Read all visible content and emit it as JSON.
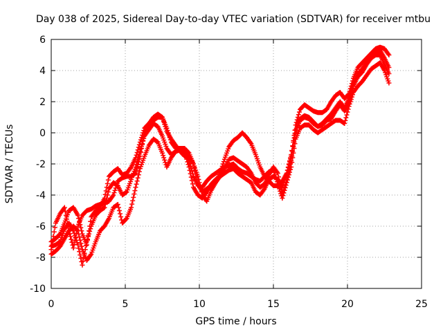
{
  "chart_data": {
    "type": "scatter",
    "title": "Day 038 of 2025, Sidereal Day-to-day VTEC variation (SDTVAR) for receiver mtbu",
    "xlabel": "GPS time / hours",
    "ylabel": "SDTVAR / TECUs",
    "xlim": [
      0,
      25
    ],
    "ylim": [
      -10,
      6
    ],
    "xticks": [
      "0",
      "5",
      "10",
      "15",
      "20",
      "25"
    ],
    "yticks": [
      "-10",
      "-8",
      "-6",
      "-4",
      "-2",
      "0",
      "2",
      "4",
      "6"
    ],
    "grid": true,
    "marker": "+",
    "color": "#ff0000",
    "series": [
      {
        "x": [
          0.0,
          0.3,
          0.6,
          0.9,
          1.2,
          1.5,
          1.8,
          2.1,
          2.4,
          2.7,
          3.0,
          3.3,
          3.6,
          3.9,
          4.2,
          4.5,
          4.8,
          5.1,
          5.4,
          5.7,
          6.0,
          6.3,
          6.6,
          6.9,
          7.2,
          7.5,
          7.8,
          8.1,
          8.4,
          8.7,
          9.0,
          9.3,
          9.6,
          9.9,
          10.2,
          10.5,
          10.8,
          11.1,
          11.4,
          11.7,
          12.0,
          12.3,
          12.6,
          12.9,
          13.2,
          13.5,
          13.8,
          14.1,
          14.4,
          14.7,
          15.0,
          15.3,
          15.6,
          15.9,
          16.2,
          16.5,
          16.8,
          17.1,
          17.4,
          17.7,
          18.0,
          18.3,
          18.6,
          18.9,
          19.2,
          19.5,
          19.8,
          20.1,
          20.4,
          20.7,
          21.0,
          21.3,
          21.6,
          21.9,
          22.2,
          22.5,
          22.8
        ],
        "y": [
          -7.5,
          -5.8,
          -5.2,
          -4.8,
          -6.3,
          -7.4,
          -6.0,
          -5.3,
          -5.0,
          -4.9,
          -4.7,
          -4.6,
          -4.5,
          -4.4,
          -4.0,
          -3.1,
          -2.9,
          -2.8,
          -2.8,
          -2.6,
          -1.5,
          0.0,
          0.4,
          0.8,
          1.0,
          1.0,
          0.3,
          -0.6,
          -1.0,
          -1.0,
          -1.0,
          -1.3,
          -2.0,
          -3.3,
          -3.8,
          -3.6,
          -3.4,
          -3.2,
          -2.6,
          -1.7,
          -0.9,
          -0.5,
          -0.3,
          0.0,
          -0.3,
          -0.7,
          -1.4,
          -2.2,
          -2.8,
          -3.1,
          -3.4,
          -3.4,
          -3.1,
          -2.6,
          -1.5,
          0.5,
          1.5,
          1.8,
          1.6,
          1.4,
          1.3,
          1.3,
          1.5,
          2.0,
          2.4,
          2.6,
          2.2,
          2.5,
          3.5,
          4.2,
          4.5,
          4.8,
          5.1,
          5.4,
          5.5,
          5.4,
          5.0
        ]
      },
      {
        "x": [
          0.0,
          0.3,
          0.6,
          0.9,
          1.2,
          1.5,
          1.8,
          2.1,
          2.4,
          2.7,
          3.0,
          3.3,
          3.6,
          3.9,
          4.2,
          4.5,
          4.8,
          5.1,
          5.4,
          5.7,
          6.0,
          6.3,
          6.6,
          6.9,
          7.2,
          7.5,
          7.8,
          8.1,
          8.4,
          8.7,
          9.0,
          9.3,
          9.6,
          9.9,
          10.2,
          10.5,
          10.8,
          11.1,
          11.4,
          11.7,
          12.0,
          12.3,
          12.6,
          12.9,
          13.2,
          13.5,
          13.8,
          14.1,
          14.4,
          14.7,
          15.0,
          15.3,
          15.6,
          15.9,
          16.2,
          16.5,
          16.8,
          17.1,
          17.4,
          17.7,
          18.0,
          18.3,
          18.6,
          18.9,
          19.2,
          19.5,
          19.8,
          20.1,
          20.4,
          20.7,
          21.0,
          21.3,
          21.6,
          21.9,
          22.2,
          22.5,
          22.8
        ],
        "y": [
          -7.0,
          -6.8,
          -6.5,
          -5.8,
          -5.0,
          -4.8,
          -5.3,
          -6.5,
          -7.2,
          -5.4,
          -5.0,
          -4.8,
          -4.2,
          -2.8,
          -2.5,
          -2.3,
          -2.7,
          -2.6,
          -2.2,
          -1.6,
          -0.6,
          0.3,
          0.6,
          1.0,
          1.2,
          1.0,
          0.1,
          -0.4,
          -0.8,
          -1.2,
          -1.5,
          -1.5,
          -2.0,
          -2.8,
          -4.0,
          -4.4,
          -3.7,
          -3.2,
          -2.8,
          -2.3,
          -1.7,
          -1.6,
          -1.8,
          -2.0,
          -2.2,
          -2.6,
          -3.2,
          -3.5,
          -3.3,
          -2.7,
          -2.2,
          -2.6,
          -4.0,
          -3.0,
          -1.8,
          0.0,
          0.9,
          1.1,
          1.0,
          0.7,
          0.4,
          0.5,
          0.8,
          0.9,
          1.4,
          1.8,
          1.4,
          1.9,
          3.0,
          3.6,
          3.9,
          4.4,
          4.8,
          5.0,
          5.0,
          4.4,
          3.8
        ]
      },
      {
        "x": [
          0.0,
          0.3,
          0.6,
          0.9,
          1.2,
          1.5,
          1.8,
          2.1,
          2.4,
          2.7,
          3.0,
          3.3,
          3.6,
          3.9,
          4.2,
          4.5,
          4.8,
          5.1,
          5.4,
          5.7,
          6.0,
          6.3,
          6.6,
          6.9,
          7.2,
          7.5,
          7.8,
          8.1,
          8.4,
          8.7,
          9.0,
          9.3,
          9.6,
          9.9,
          10.2,
          10.5,
          10.8,
          11.1,
          11.4,
          11.7,
          12.0,
          12.3,
          12.6,
          12.9,
          13.2,
          13.5,
          13.8,
          14.1,
          14.4,
          14.7,
          15.0,
          15.3,
          15.6,
          15.9,
          16.2,
          16.5,
          16.8,
          17.1,
          17.4,
          17.7,
          18.0,
          18.3,
          18.6,
          18.9,
          19.2,
          19.5,
          19.8,
          20.1,
          20.4,
          20.7,
          21.0,
          21.3,
          21.6,
          21.9,
          22.2,
          22.5,
          22.8
        ],
        "y": [
          -7.8,
          -7.6,
          -7.3,
          -6.8,
          -6.3,
          -6.0,
          -6.3,
          -7.5,
          -8.2,
          -7.8,
          -7.0,
          -6.3,
          -6.0,
          -5.5,
          -4.8,
          -4.6,
          -5.8,
          -5.5,
          -4.8,
          -3.5,
          -2.3,
          -1.5,
          -0.8,
          -0.4,
          -0.6,
          -1.3,
          -2.2,
          -1.6,
          -1.2,
          -1.0,
          -1.0,
          -1.8,
          -2.8,
          -3.4,
          -3.5,
          -3.1,
          -2.8,
          -2.6,
          -2.4,
          -2.2,
          -2.1,
          -2.0,
          -2.3,
          -2.5,
          -2.6,
          -2.8,
          -3.0,
          -3.1,
          -2.8,
          -2.5,
          -2.4,
          -3.3,
          -4.2,
          -3.2,
          -2.2,
          -0.4,
          0.3,
          0.5,
          0.5,
          0.2,
          0.0,
          0.2,
          0.4,
          0.6,
          0.8,
          0.8,
          0.6,
          1.7,
          2.6,
          3.0,
          3.3,
          3.7,
          4.1,
          4.3,
          4.5,
          4.0,
          3.2
        ]
      },
      {
        "x": [
          0.0,
          0.3,
          0.6,
          0.9,
          1.2,
          1.5,
          1.8,
          2.1,
          2.4,
          2.7,
          3.0,
          3.3,
          3.6,
          3.9,
          4.2,
          4.5,
          4.8,
          5.1,
          5.4,
          5.7,
          6.0,
          6.3,
          6.6,
          6.9,
          7.2,
          7.5,
          7.8,
          8.1,
          8.4,
          8.7,
          9.0,
          9.3,
          9.6,
          9.9,
          10.2,
          10.5,
          10.8,
          11.1,
          11.4,
          11.7,
          12.0,
          12.3,
          12.6,
          12.9,
          13.2,
          13.5,
          13.8,
          14.1,
          14.4,
          14.7,
          15.0,
          15.3,
          15.6,
          15.9,
          16.2,
          16.5,
          16.8,
          17.1,
          17.4,
          17.7,
          18.0,
          18.3,
          18.6,
          18.9,
          19.2,
          19.5,
          19.8,
          20.1,
          20.4,
          20.7,
          21.0,
          21.3,
          21.6,
          21.9,
          22.2,
          22.5,
          22.8
        ],
        "y": [
          -7.3,
          -7.2,
          -7.0,
          -6.2,
          -5.8,
          -6.3,
          -7.2,
          -8.5,
          -7.0,
          -6.0,
          -5.3,
          -5.0,
          -4.8,
          -3.6,
          -3.2,
          -3.4,
          -4.0,
          -3.8,
          -3.0,
          -2.2,
          -1.2,
          -0.2,
          0.2,
          0.6,
          0.4,
          -0.2,
          -1.0,
          -1.4,
          -1.2,
          -1.1,
          -1.2,
          -2.2,
          -3.5,
          -4.0,
          -4.2,
          -3.8,
          -3.3,
          -3.0,
          -2.8,
          -2.6,
          -2.4,
          -2.3,
          -2.6,
          -2.8,
          -3.0,
          -3.2,
          -3.8,
          -4.0,
          -3.6,
          -3.0,
          -2.8,
          -3.0,
          -3.5,
          -2.6,
          -1.4,
          0.2,
          0.8,
          1.0,
          0.9,
          0.6,
          0.4,
          0.6,
          0.9,
          1.2,
          1.6,
          2.0,
          1.6,
          2.2,
          3.2,
          3.8,
          4.1,
          4.5,
          4.9,
          5.2,
          5.3,
          4.8,
          4.2
        ]
      }
    ]
  }
}
